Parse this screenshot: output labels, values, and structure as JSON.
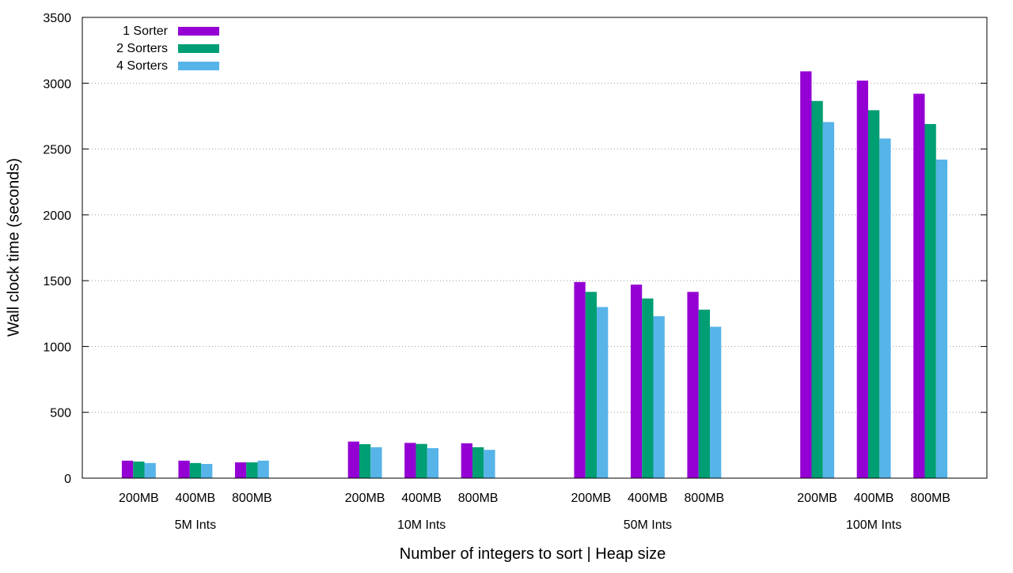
{
  "chart_data": {
    "type": "bar",
    "xlabel": "Number of integers to sort | Heap size",
    "ylabel": "Wall clock time (seconds)",
    "ylim": [
      0,
      3500
    ],
    "yticks": [
      0,
      500,
      1000,
      1500,
      2000,
      2500,
      3000,
      3500
    ],
    "grid": "horizontal dotted",
    "legend_position": "top-left",
    "groups": [
      {
        "label": "5M Ints",
        "subcategories": [
          "200MB",
          "400MB",
          "800MB"
        ],
        "series_values": [
          [
            133,
            133,
            120
          ],
          [
            126,
            115,
            120
          ],
          [
            115,
            108,
            133
          ]
        ]
      },
      {
        "label": "10M Ints",
        "subcategories": [
          "200MB",
          "400MB",
          "800MB"
        ],
        "series_values": [
          [
            278,
            268,
            265
          ],
          [
            258,
            260,
            235
          ],
          [
            235,
            228,
            215
          ]
        ]
      },
      {
        "label": "50M Ints",
        "subcategories": [
          "200MB",
          "400MB",
          "800MB"
        ],
        "series_values": [
          [
            1490,
            1470,
            1415
          ],
          [
            1415,
            1365,
            1280
          ],
          [
            1300,
            1230,
            1150
          ]
        ]
      },
      {
        "label": "100M Ints",
        "subcategories": [
          "200MB",
          "400MB",
          "800MB"
        ],
        "series_values": [
          [
            3090,
            3020,
            2920
          ],
          [
            2865,
            2795,
            2690
          ],
          [
            2705,
            2580,
            2420
          ]
        ]
      }
    ],
    "series": [
      {
        "name": "1 Sorter",
        "color": "#9400d3"
      },
      {
        "name": "2 Sorters",
        "color": "#009e73"
      },
      {
        "name": "4 Sorters",
        "color": "#56b4e9"
      }
    ]
  }
}
